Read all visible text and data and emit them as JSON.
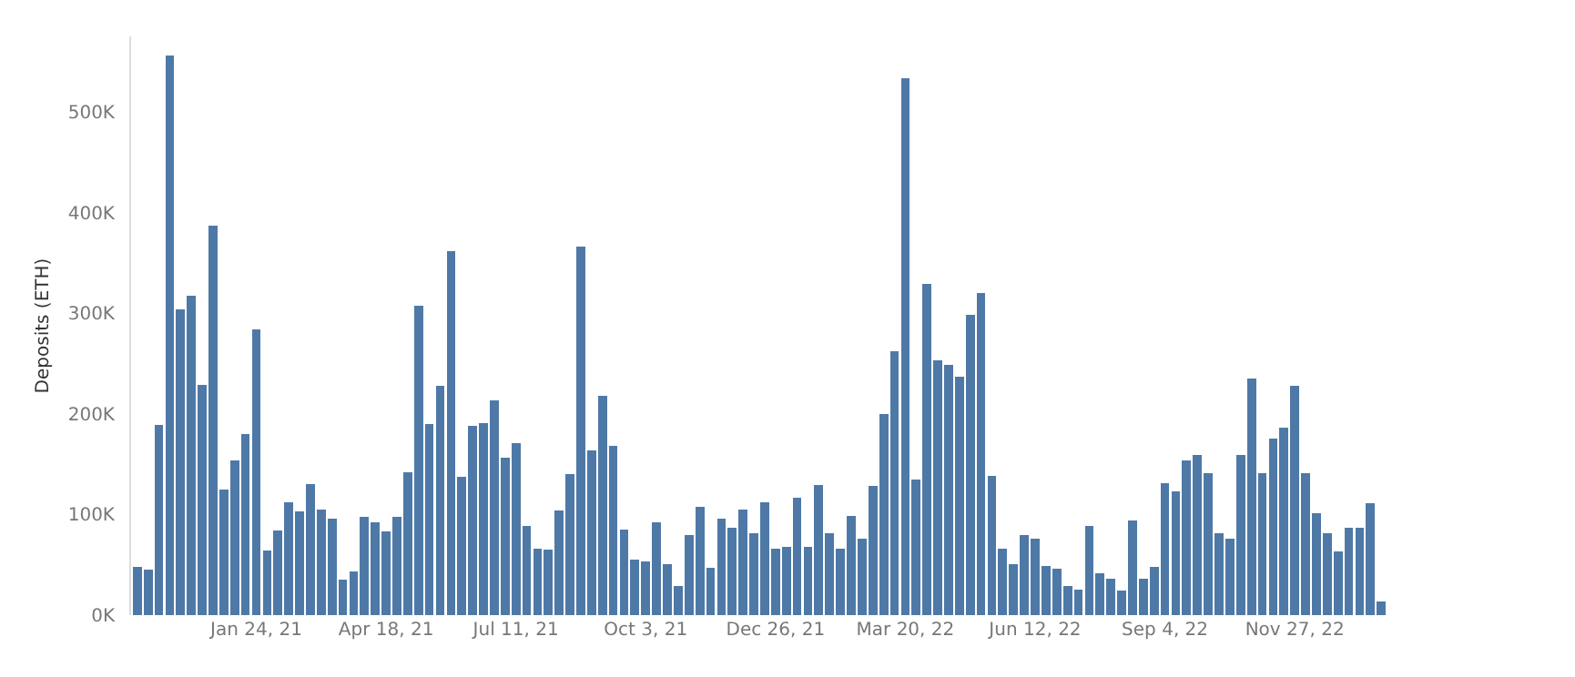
{
  "chart_data": {
    "type": "bar",
    "ylabel": "Deposits (ETH)",
    "color": "#4e79a7",
    "x": [
      "2020-11-08",
      "2020-11-15",
      "2020-11-22",
      "2020-11-29",
      "2020-12-06",
      "2020-12-13",
      "2020-12-20",
      "2020-12-27",
      "2021-01-03",
      "2021-01-10",
      "2021-01-17",
      "2021-01-24",
      "2021-01-31",
      "2021-02-07",
      "2021-02-14",
      "2021-02-21",
      "2021-02-28",
      "2021-03-07",
      "2021-03-14",
      "2021-03-21",
      "2021-03-28",
      "2021-04-04",
      "2021-04-11",
      "2021-04-18",
      "2021-04-25",
      "2021-05-02",
      "2021-05-09",
      "2021-05-16",
      "2021-05-23",
      "2021-05-30",
      "2021-06-06",
      "2021-06-13",
      "2021-06-20",
      "2021-06-27",
      "2021-07-04",
      "2021-07-11",
      "2021-07-18",
      "2021-07-25",
      "2021-08-01",
      "2021-08-08",
      "2021-08-15",
      "2021-08-22",
      "2021-08-29",
      "2021-09-05",
      "2021-09-12",
      "2021-09-19",
      "2021-09-26",
      "2021-10-03",
      "2021-10-10",
      "2021-10-17",
      "2021-10-24",
      "2021-10-31",
      "2021-11-07",
      "2021-11-14",
      "2021-11-21",
      "2021-11-28",
      "2021-12-05",
      "2021-12-12",
      "2021-12-19",
      "2021-12-26",
      "2022-01-02",
      "2022-01-09",
      "2022-01-16",
      "2022-01-23",
      "2022-01-30",
      "2022-02-06",
      "2022-02-13",
      "2022-02-20",
      "2022-02-27",
      "2022-03-06",
      "2022-03-13",
      "2022-03-20",
      "2022-03-27",
      "2022-04-03",
      "2022-04-10",
      "2022-04-17",
      "2022-04-24",
      "2022-05-01",
      "2022-05-08",
      "2022-05-15",
      "2022-05-22",
      "2022-05-29",
      "2022-06-05",
      "2022-06-12",
      "2022-06-19",
      "2022-06-26",
      "2022-07-03",
      "2022-07-10",
      "2022-07-17",
      "2022-07-24",
      "2022-07-31",
      "2022-08-07",
      "2022-08-14",
      "2022-08-21",
      "2022-08-28",
      "2022-09-04",
      "2022-09-11",
      "2022-09-18",
      "2022-09-25",
      "2022-10-02",
      "2022-10-09",
      "2022-10-16",
      "2022-10-23",
      "2022-10-30",
      "2022-11-06",
      "2022-11-13",
      "2022-11-20",
      "2022-11-27",
      "2022-12-04",
      "2022-12-11",
      "2022-12-18",
      "2022-12-25",
      "2023-01-01",
      "2023-01-08",
      "2023-01-15",
      "2023-01-22"
    ],
    "values": [
      48000,
      45000,
      189000,
      556000,
      304000,
      317000,
      229000,
      387000,
      125000,
      154000,
      180000,
      284000,
      64000,
      84000,
      112000,
      103000,
      130000,
      105000,
      96000,
      35000,
      43000,
      98000,
      92000,
      83000,
      98000,
      142000,
      307000,
      190000,
      228000,
      362000,
      137000,
      188000,
      191000,
      213000,
      156000,
      171000,
      89000,
      66000,
      65000,
      104000,
      140000,
      366000,
      164000,
      218000,
      168000,
      85000,
      55000,
      53000,
      92000,
      51000,
      29000,
      80000,
      108000,
      47000,
      96000,
      87000,
      105000,
      81000,
      112000,
      66000,
      68000,
      117000,
      68000,
      129000,
      81000,
      66000,
      99000,
      76000,
      128000,
      200000,
      262000,
      533000,
      135000,
      329000,
      253000,
      249000,
      237000,
      298000,
      320000,
      138000,
      66000,
      51000,
      80000,
      76000,
      49000,
      46000,
      29000,
      25000,
      89000,
      42000,
      36000,
      24000,
      94000,
      36000,
      48000,
      131000,
      123000,
      154000,
      159000,
      141000,
      81000,
      76000,
      159000,
      235000,
      141000,
      175000,
      186000,
      228000,
      141000,
      101000,
      81000,
      63000,
      87000,
      87000,
      111000,
      14000
    ],
    "xlim": [
      "2020-11-04",
      "2023-01-26"
    ],
    "xticks": [
      {
        "value": "2021-01-24",
        "label": "Jan 24, 21"
      },
      {
        "value": "2021-04-18",
        "label": "Apr 18, 21"
      },
      {
        "value": "2021-07-11",
        "label": "Jul 11, 21"
      },
      {
        "value": "2021-10-03",
        "label": "Oct 3, 21"
      },
      {
        "value": "2021-12-26",
        "label": "Dec 26, 21"
      },
      {
        "value": "2022-03-20",
        "label": "Mar 20, 22"
      },
      {
        "value": "2022-06-12",
        "label": "Jun 12, 22"
      },
      {
        "value": "2022-09-04",
        "label": "Sep 4, 22"
      },
      {
        "value": "2022-11-27",
        "label": "Nov 27, 22"
      }
    ],
    "ylim": [
      0,
      575000
    ],
    "yticks": [
      {
        "value": 0,
        "label": "0K"
      },
      {
        "value": 100000,
        "label": "100K"
      },
      {
        "value": 200000,
        "label": "200K"
      },
      {
        "value": 300000,
        "label": "300K"
      },
      {
        "value": 400000,
        "label": "400K"
      },
      {
        "value": 500000,
        "label": "500K"
      }
    ]
  }
}
